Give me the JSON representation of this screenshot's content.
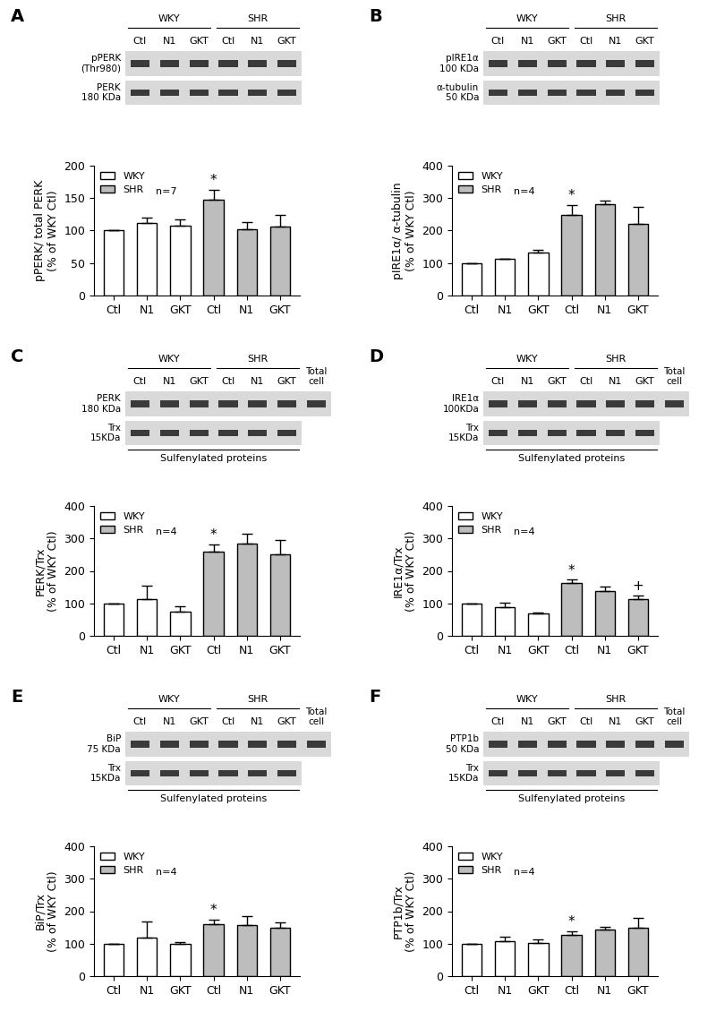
{
  "chart_data": [
    {
      "panel": "A",
      "type": "bar",
      "blot": {
        "groups": [
          "WKY",
          "SHR"
        ],
        "lanes": [
          "Ctl",
          "N1",
          "GKT",
          "Ctl",
          "N1",
          "GKT"
        ],
        "total_cell": null,
        "bands": [
          "pPERK\n(Thr980)",
          "PERK\n180 KDa"
        ],
        "footer": null
      },
      "categories": [
        "Ctl",
        "N1",
        "GKT",
        "Ctl",
        "N1",
        "GKT"
      ],
      "series": [
        {
          "name": "WKY",
          "color": "#ffffff",
          "values": [
            100,
            112,
            108,
            null,
            null,
            null
          ],
          "errors": [
            0,
            8,
            9,
            null,
            null,
            null
          ]
        },
        {
          "name": "SHR",
          "color": "#bdbdbd",
          "values": [
            null,
            null,
            null,
            147,
            102,
            106
          ],
          "errors": [
            null,
            null,
            null,
            16,
            11,
            18
          ]
        }
      ],
      "y_label": "pPERK/ total PERK\n(% of WKY Ctl)",
      "ylim": [
        0,
        200
      ],
      "yticks": [
        0,
        50,
        100,
        150,
        200
      ],
      "legend": "upper left",
      "n_label": "n=7",
      "annotations": [
        {
          "text": "*",
          "category_index": 3
        }
      ]
    },
    {
      "panel": "B",
      "type": "bar",
      "blot": {
        "groups": [
          "WKY",
          "SHR"
        ],
        "lanes": [
          "Ctl",
          "N1",
          "GKT",
          "Ctl",
          "N1",
          "GKT"
        ],
        "total_cell": null,
        "bands": [
          "pIRE1α\n100 KDa",
          "α-tubulin\n50 KDa"
        ],
        "footer": null
      },
      "categories": [
        "Ctl",
        "N1",
        "GKT",
        "Ctl",
        "N1",
        "GKT"
      ],
      "series": [
        {
          "name": "WKY",
          "color": "#ffffff",
          "values": [
            100,
            112,
            132,
            null,
            null,
            null
          ],
          "errors": [
            0,
            2,
            8,
            null,
            null,
            null
          ]
        },
        {
          "name": "SHR",
          "color": "#bdbdbd",
          "values": [
            null,
            null,
            null,
            248,
            280,
            222
          ],
          "errors": [
            null,
            null,
            null,
            30,
            12,
            52
          ]
        }
      ],
      "y_label": "pIRE1α/ α-tubulin\n(% of WKY Ctl)",
      "ylim": [
        0,
        400
      ],
      "yticks": [
        0,
        100,
        200,
        300,
        400
      ],
      "legend": "upper left",
      "n_label": "n=4",
      "annotations": [
        {
          "text": "*",
          "category_index": 3
        }
      ]
    },
    {
      "panel": "C",
      "type": "bar",
      "blot": {
        "groups": [
          "WKY",
          "SHR"
        ],
        "lanes": [
          "Ctl",
          "N1",
          "GKT",
          "Ctl",
          "N1",
          "GKT"
        ],
        "total_cell": "Total\ncell",
        "bands": [
          "PERK\n180 KDa",
          "Trx\n15KDa"
        ],
        "footer": "Sulfenylated proteins"
      },
      "categories": [
        "Ctl",
        "N1",
        "GKT",
        "Ctl",
        "N1",
        "GKT"
      ],
      "series": [
        {
          "name": "WKY",
          "color": "#ffffff",
          "values": [
            100,
            113,
            75,
            null,
            null,
            null
          ],
          "errors": [
            0,
            42,
            15,
            null,
            null,
            null
          ]
        },
        {
          "name": "SHR",
          "color": "#bdbdbd",
          "values": [
            null,
            null,
            null,
            260,
            285,
            250
          ],
          "errors": [
            null,
            null,
            null,
            22,
            30,
            45
          ]
        }
      ],
      "y_label": "PERK/Trx\n(% of WKY Ctl)",
      "ylim": [
        0,
        400
      ],
      "yticks": [
        0,
        100,
        200,
        300,
        400
      ],
      "legend": "upper left",
      "n_label": "n=4",
      "annotations": [
        {
          "text": "*",
          "category_index": 3
        }
      ]
    },
    {
      "panel": "D",
      "type": "bar",
      "blot": {
        "groups": [
          "WKY",
          "SHR"
        ],
        "lanes": [
          "Ctl",
          "N1",
          "GKT",
          "Ctl",
          "N1",
          "GKT"
        ],
        "total_cell": "Total\ncell",
        "bands": [
          "IRE1α\n100KDa",
          "Trx\n15KDa"
        ],
        "footer": "Sulfenylated proteins"
      },
      "categories": [
        "Ctl",
        "N1",
        "GKT",
        "Ctl",
        "N1",
        "GKT"
      ],
      "series": [
        {
          "name": "WKY",
          "color": "#ffffff",
          "values": [
            100,
            88,
            68,
            null,
            null,
            null
          ],
          "errors": [
            0,
            15,
            5,
            null,
            null,
            null
          ]
        },
        {
          "name": "SHR",
          "color": "#bdbdbd",
          "values": [
            null,
            null,
            null,
            163,
            137,
            113
          ],
          "errors": [
            null,
            null,
            null,
            10,
            15,
            12
          ]
        }
      ],
      "y_label": "IRE1α/Trx\n(% of WKY Ctl)",
      "ylim": [
        0,
        400
      ],
      "yticks": [
        0,
        100,
        200,
        300,
        400
      ],
      "legend": "upper left",
      "n_label": "n=4",
      "annotations": [
        {
          "text": "*",
          "category_index": 3
        },
        {
          "text": "+",
          "category_index": 5
        }
      ]
    },
    {
      "panel": "E",
      "type": "bar",
      "blot": {
        "groups": [
          "WKY",
          "SHR"
        ],
        "lanes": [
          "Ctl",
          "N1",
          "GKT",
          "Ctl",
          "N1",
          "GKT"
        ],
        "total_cell": "Total\ncell",
        "bands": [
          "BiP\n75 KDa",
          "Trx\n15KDa"
        ],
        "footer": "Sulfenylated proteins"
      },
      "categories": [
        "Ctl",
        "N1",
        "GKT",
        "Ctl",
        "N1",
        "GKT"
      ],
      "series": [
        {
          "name": "WKY",
          "color": "#ffffff",
          "values": [
            100,
            120,
            100,
            null,
            null,
            null
          ],
          "errors": [
            0,
            47,
            6,
            null,
            null,
            null
          ]
        },
        {
          "name": "SHR",
          "color": "#bdbdbd",
          "values": [
            null,
            null,
            null,
            160,
            158,
            148
          ],
          "errors": [
            null,
            null,
            null,
            14,
            26,
            17
          ]
        }
      ],
      "y_label": "BiP/Trx\n(% of WKY Ctl)",
      "ylim": [
        0,
        400
      ],
      "yticks": [
        0,
        100,
        200,
        300,
        400
      ],
      "legend": "upper left",
      "n_label": "n=4",
      "annotations": [
        {
          "text": "*",
          "category_index": 3
        }
      ]
    },
    {
      "panel": "F",
      "type": "bar",
      "blot": {
        "groups": [
          "WKY",
          "SHR"
        ],
        "lanes": [
          "Ctl",
          "N1",
          "GKT",
          "Ctl",
          "N1",
          "GKT"
        ],
        "total_cell": "Total\ncell",
        "bands": [
          "PTP1b\n50 KDa",
          "Trx\n15KDa"
        ],
        "footer": "Sulfenylated proteins"
      },
      "categories": [
        "Ctl",
        "N1",
        "GKT",
        "Ctl",
        "N1",
        "GKT"
      ],
      "series": [
        {
          "name": "WKY",
          "color": "#ffffff",
          "values": [
            100,
            108,
            103,
            null,
            null,
            null
          ],
          "errors": [
            0,
            14,
            10,
            null,
            null,
            null
          ]
        },
        {
          "name": "SHR",
          "color": "#bdbdbd",
          "values": [
            null,
            null,
            null,
            128,
            143,
            150
          ],
          "errors": [
            null,
            null,
            null,
            10,
            10,
            28
          ]
        }
      ],
      "y_label": "PTP1b/Trx\n(% of WKY Ctl)",
      "ylim": [
        0,
        400
      ],
      "yticks": [
        0,
        100,
        200,
        300,
        400
      ],
      "legend": "upper left",
      "n_label": "n=4",
      "annotations": [
        {
          "text": "*",
          "category_index": 3
        }
      ]
    }
  ]
}
